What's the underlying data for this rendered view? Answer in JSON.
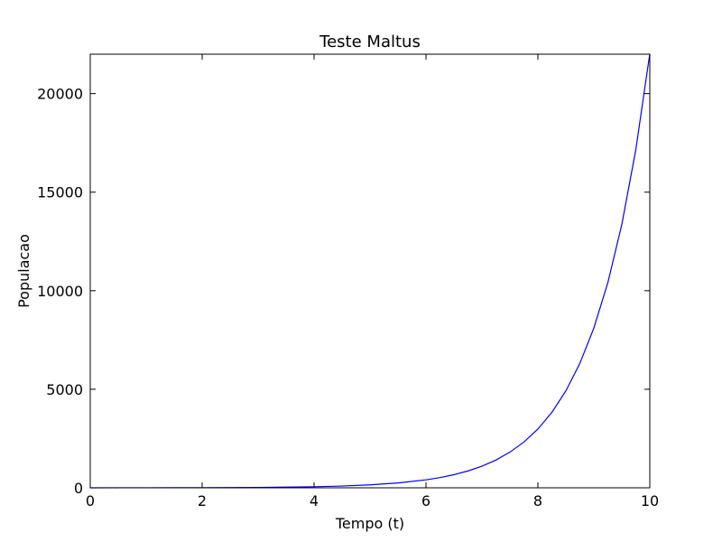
{
  "chart_data": {
    "type": "line",
    "title": "Teste Maltus",
    "xlabel": "Tempo (t)",
    "ylabel": "Populacao",
    "xlim": [
      0,
      10
    ],
    "ylim": [
      0,
      22000
    ],
    "xticks": [
      0,
      2,
      4,
      6,
      8,
      10
    ],
    "yticks": [
      0,
      5000,
      10000,
      15000,
      20000
    ],
    "grid": false,
    "series": [
      {
        "color": "#0000ff",
        "x": [
          0,
          0.5,
          1,
          1.5,
          2,
          2.5,
          3,
          3.5,
          4,
          4.5,
          5,
          5.5,
          6,
          6.25,
          6.5,
          6.75,
          7,
          7.25,
          7.5,
          7.75,
          8,
          8.25,
          8.5,
          8.75,
          9,
          9.25,
          9.5,
          9.75,
          10
        ],
        "y": [
          1,
          1.65,
          2.72,
          4.48,
          7.39,
          12.2,
          20.1,
          33.1,
          54.6,
          90.0,
          148,
          245,
          403,
          518,
          665,
          854,
          1097,
          1408,
          1808,
          2322,
          2981,
          3827,
          4915,
          6311,
          8103,
          10405,
          13360,
          17154,
          22026
        ]
      }
    ]
  }
}
